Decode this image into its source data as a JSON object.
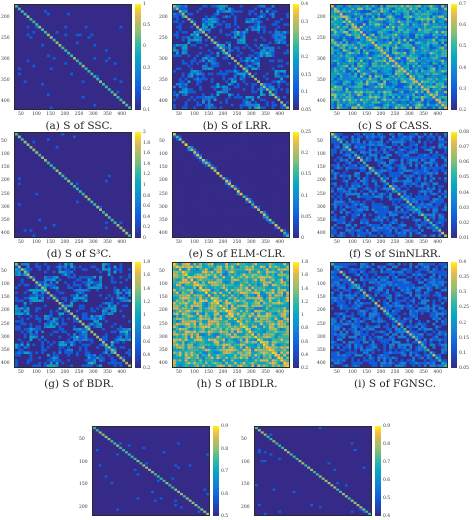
{
  "panels": [
    {
      "caption": "(a) S of SSC.",
      "cbar": [
        "1",
        "0.5",
        "0",
        "0.3",
        "0.2",
        "0.1"
      ],
      "yticks": [
        "200",
        "250",
        "300",
        "350",
        "400"
      ],
      "xticks": [
        "50",
        "100",
        "150",
        "200",
        "250",
        "300",
        "350",
        "400"
      ],
      "style": "sparse"
    },
    {
      "caption": "(b) S of LRR.",
      "cbar": [
        "0.4",
        "0.3",
        "0.25",
        "0.2",
        "0.15",
        "0.1",
        "0.05"
      ],
      "yticks": [
        "200",
        "250",
        "300",
        "350",
        "400"
      ],
      "xticks": [
        "50",
        "100",
        "150",
        "200",
        "250",
        "300",
        "350",
        "400"
      ],
      "style": "blocky"
    },
    {
      "caption": "(c) S of CASS.",
      "cbar": [
        "0.7",
        "0.6",
        "0.5",
        "0.4",
        "0.3",
        "0.2"
      ],
      "yticks": [
        "200",
        "250",
        "300",
        "350",
        "400"
      ],
      "xticks": [
        "50",
        "100",
        "150",
        "200",
        "250",
        "300",
        "350",
        "400"
      ],
      "style": "dense"
    },
    {
      "caption": "(d) S of S³C.",
      "cbar": [
        "2",
        "1.8",
        "1.6",
        "1.4",
        "1.2",
        "1",
        "0.8",
        "0.6",
        "0.4",
        "0.2",
        "0"
      ],
      "yticks": [
        "50",
        "100",
        "150",
        "200",
        "250",
        "300",
        "350",
        "400"
      ],
      "xticks": [
        "50",
        "100",
        "150",
        "200",
        "250",
        "300",
        "350",
        "400"
      ],
      "style": "sparse"
    },
    {
      "caption": "(e) S of ELM-CLR.",
      "cbar": [
        "0.25",
        "0.2",
        "0.15",
        "0.1",
        "0.05",
        "0"
      ],
      "yticks": [
        "50",
        "100",
        "150",
        "200",
        "250",
        "300",
        "350",
        "400"
      ],
      "xticks": [
        "50",
        "100",
        "150",
        "200",
        "250",
        "300",
        "350",
        "400"
      ],
      "style": "light"
    },
    {
      "caption": "(f) S of SinNLRR.",
      "cbar": [
        "0.08",
        "0.07",
        "0.06",
        "0.05",
        "0.04",
        "0.03",
        "0.02",
        "0.01"
      ],
      "yticks": [
        "50",
        "100",
        "150",
        "200",
        "250",
        "300",
        "350",
        "400"
      ],
      "xticks": [
        "50",
        "100",
        "150",
        "200",
        "250",
        "300",
        "350",
        "400"
      ],
      "style": "medium"
    },
    {
      "caption": "(g) S of BDR.",
      "cbar": [
        "1.8",
        "1.6",
        "1.4",
        "1.2",
        "1",
        "0.8",
        "0.6",
        "0.4",
        "0.2"
      ],
      "yticks": [
        "50",
        "100",
        "150",
        "200",
        "250",
        "300",
        "350",
        "400"
      ],
      "xticks": [
        "50",
        "100",
        "150",
        "200",
        "250",
        "300",
        "350",
        "400"
      ],
      "style": "blocky"
    },
    {
      "caption": "(h) S of IBDLR.",
      "cbar": [
        "1.8",
        "1.6",
        "1.4",
        "1.2",
        "1",
        "0.8",
        "0.6",
        "0.4",
        "0.2"
      ],
      "yticks": [
        "50",
        "100",
        "150",
        "200",
        "250",
        "300",
        "350",
        "400"
      ],
      "xticks": [
        "50",
        "100",
        "150",
        "200",
        "250",
        "300",
        "350",
        "400"
      ],
      "style": "bright"
    },
    {
      "caption": "(i) S of FGNSC.",
      "cbar": [
        "0.4",
        "0.35",
        "0.3",
        "0.25",
        "0.2",
        "0.15",
        "0.1",
        "0.05"
      ],
      "yticks": [
        "50",
        "100",
        "150",
        "200",
        "250",
        "300",
        "350",
        "400"
      ],
      "xticks": [
        "50",
        "100",
        "150",
        "200",
        "250",
        "300",
        "350",
        "400"
      ],
      "style": "medium"
    },
    {
      "caption": "",
      "cbar": [
        "0.9",
        "0.8",
        "0.7",
        "0.6",
        "0.5"
      ],
      "yticks": [
        "50",
        "100",
        "150",
        "200"
      ],
      "xticks": [],
      "style": "sparse"
    },
    {
      "caption": "",
      "cbar": [
        "0.9",
        "0.8",
        "0.7",
        "0.6",
        "0.5",
        "0.4"
      ],
      "yticks": [
        "50",
        "100",
        "150",
        "200"
      ],
      "xticks": [],
      "style": "sparse"
    }
  ]
}
